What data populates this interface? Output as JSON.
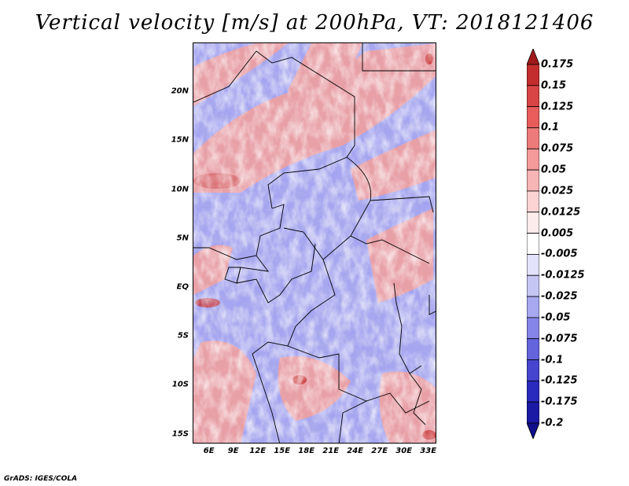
{
  "title": "Vertical velocity [m/s] at 200hPa, VT: 2018121406",
  "footer": "GrADS: IGES/COLA",
  "map": {
    "lon_range": [
      4,
      34
    ],
    "lat_range": [
      -16,
      25
    ],
    "lat_ticks": [
      {
        "value": 20,
        "label": "20N"
      },
      {
        "value": 15,
        "label": "15N"
      },
      {
        "value": 10,
        "label": "10N"
      },
      {
        "value": 5,
        "label": "5N"
      },
      {
        "value": 0,
        "label": "EQ"
      },
      {
        "value": -5,
        "label": "5S"
      },
      {
        "value": -10,
        "label": "10S"
      },
      {
        "value": -15,
        "label": "15S"
      }
    ],
    "lon_ticks": [
      {
        "value": 6,
        "label": "6E"
      },
      {
        "value": 9,
        "label": "9E"
      },
      {
        "value": 12,
        "label": "12E"
      },
      {
        "value": 15,
        "label": "15E"
      },
      {
        "value": 18,
        "label": "18E"
      },
      {
        "value": 21,
        "label": "21E"
      },
      {
        "value": 24,
        "label": "24E"
      },
      {
        "value": 27,
        "label": "27E"
      },
      {
        "value": 30,
        "label": "30E"
      },
      {
        "value": 33,
        "label": "33E"
      }
    ]
  },
  "colorbar": {
    "labels": [
      "0.175",
      "0.15",
      "0.125",
      "0.1",
      "0.075",
      "0.05",
      "0.025",
      "0.0125",
      "0.005",
      "-0.005",
      "-0.0125",
      "-0.025",
      "-0.05",
      "-0.075",
      "-0.1",
      "-0.125",
      "-0.175",
      "-0.2"
    ],
    "colors": [
      "#a11a1a",
      "#c42d2d",
      "#d94545",
      "#e85c5c",
      "#ee7b7b",
      "#f49a9a",
      "#f7b5b5",
      "#fbd3d3",
      "#fdecec",
      "#ffffff",
      "#e2e2fa",
      "#c6c6f5",
      "#a8a8f0",
      "#8585e8",
      "#6464dd",
      "#4545cf",
      "#2a2abe",
      "#1a1aa5",
      "#10108a"
    ]
  }
}
